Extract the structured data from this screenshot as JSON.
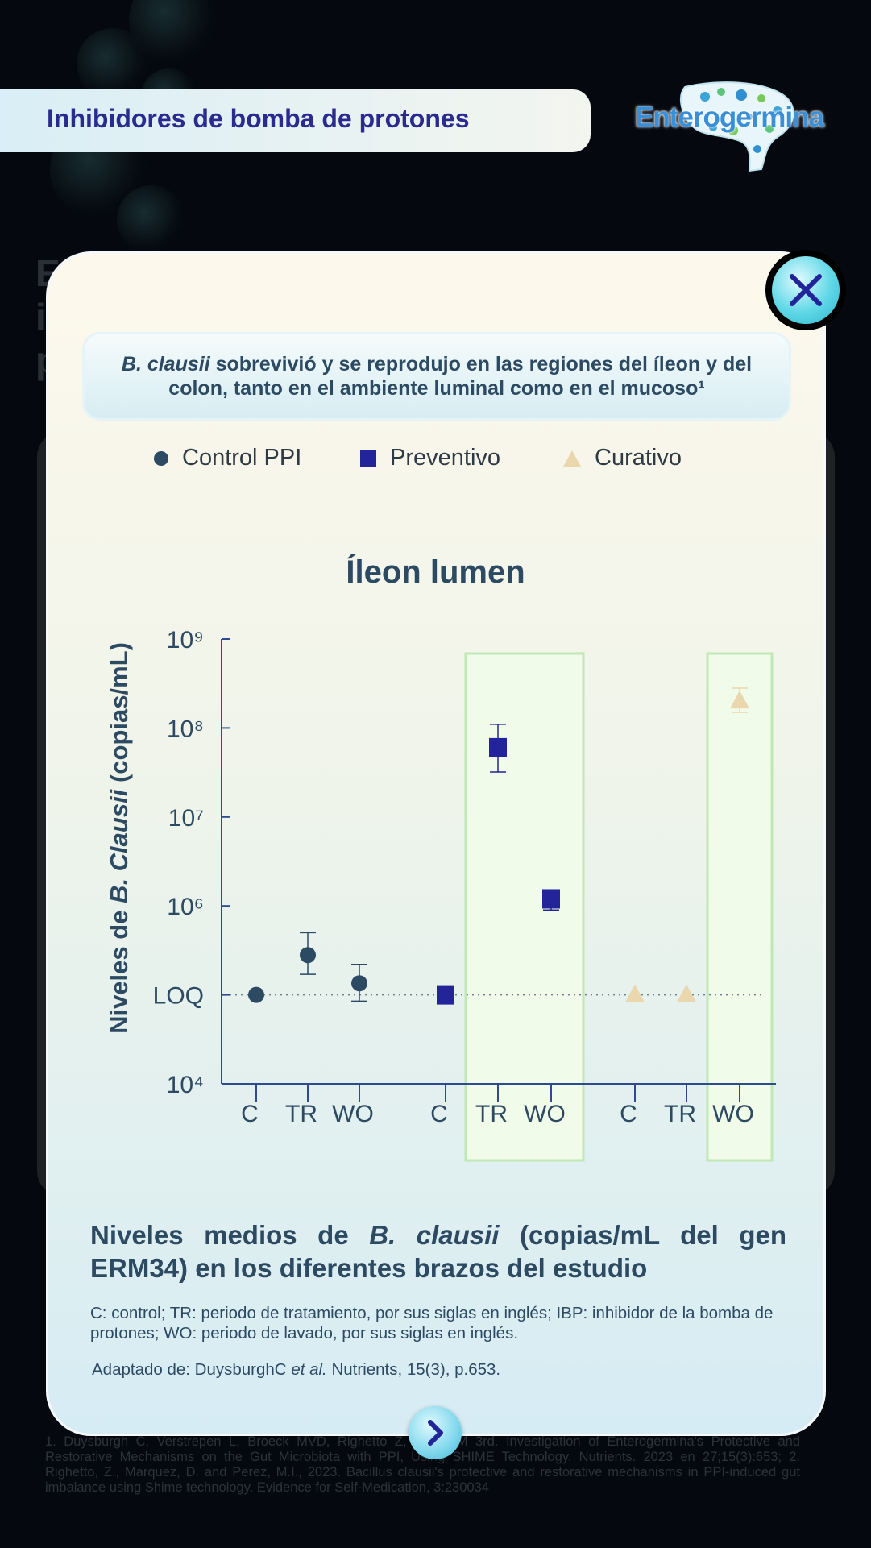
{
  "header": {
    "title": "Inhibidores de bomba de protones"
  },
  "logo": {
    "text": "Enterogermina"
  },
  "background": {
    "ghost_text": "E\ni\np"
  },
  "modal": {
    "headline_bold": "B. clausii",
    "headline_rest": " sobrevivió y se reprodujo en las regiones del íleon y del colon, tanto en el ambiente luminal como en el mucoso¹",
    "caption_pre": "Niveles medios de ",
    "caption_italic": "B. clausii",
    "caption_post": " (copias/mL del gen ERM34) en los diferentes brazos del estudio",
    "note": "C: control; TR: periodo de tratamiento, por sus siglas en inglés; IBP: inhibidor de la bomba de protones; WO: periodo de lavado, por sus siglas en inglés.",
    "source_pre": "Adaptado de: DuysburghC ",
    "source_italic": "et al.",
    "source_post": " Nutrients, 15(3), p.653."
  },
  "references": "1. Duysburgh C, Verstrepen L, Broeck MVD, Righetto Z, Perez M 3rd. Investigation of Enterogermina's Protective and Restorative Mechanisms on the Gut Microbiota with PPI, Using SHIME Technology. Nutrients. 2023 en 27;15(3):653; 2. Righetto, Z., Marquez, D. and Perez, M.I., 2023. Bacillus clausii's protective and restorative mechanisms in PPI-induced gut imbalance using Shime technology. Evidence for Self-Medication, 3:230034",
  "icons": {
    "close": "close-icon",
    "next": "chevron-right-icon"
  },
  "colors": {
    "control": "#2d4a63",
    "preventivo": "#23239a",
    "curativo": "#ead7ae",
    "highlight": "#bfe8b3"
  },
  "chart_data": {
    "type": "scatter",
    "title": "Íleon lumen",
    "ylabel_pre": "Niveles de ",
    "ylabel_italic": "B. Clausii",
    "ylabel_post": " (copias/mL)",
    "y_scale": "log",
    "y_ticks": [
      "10⁴",
      "LOQ",
      "10⁶",
      "10⁷",
      "10⁸",
      "10⁹"
    ],
    "ylim": [
      10000,
      1000000000
    ],
    "loq": 100000,
    "categories": [
      "C",
      "TR",
      "WO",
      "C",
      "TR",
      "WO",
      "C",
      "TR",
      "WO"
    ],
    "legend_position": "top",
    "series": [
      {
        "name": "Control PPI",
        "marker": "circle",
        "points": [
          {
            "x": "C",
            "y": 100000
          },
          {
            "x": "TR",
            "y": 280000,
            "err": [
              170000,
              500000
            ]
          },
          {
            "x": "WO",
            "y": 135000,
            "err": [
              85000,
              220000
            ]
          }
        ]
      },
      {
        "name": "Preventivo",
        "marker": "square",
        "points": [
          {
            "x": "C",
            "y": 100000
          },
          {
            "x": "TR",
            "y": 60000000,
            "err": [
              32000000,
              110000000
            ]
          },
          {
            "x": "WO",
            "y": 1200000,
            "err": [
              900000,
              1500000
            ]
          }
        ]
      },
      {
        "name": "Curativo",
        "marker": "triangle",
        "points": [
          {
            "x": "C",
            "y": 100000
          },
          {
            "x": "TR",
            "y": 100000
          },
          {
            "x": "WO",
            "y": 200000000,
            "err": [
              150000000,
              280000000
            ]
          }
        ]
      }
    ],
    "highlighted": [
      {
        "series": "Preventivo",
        "categories": [
          "TR",
          "WO"
        ]
      },
      {
        "series": "Curativo",
        "categories": [
          "WO"
        ]
      }
    ]
  }
}
